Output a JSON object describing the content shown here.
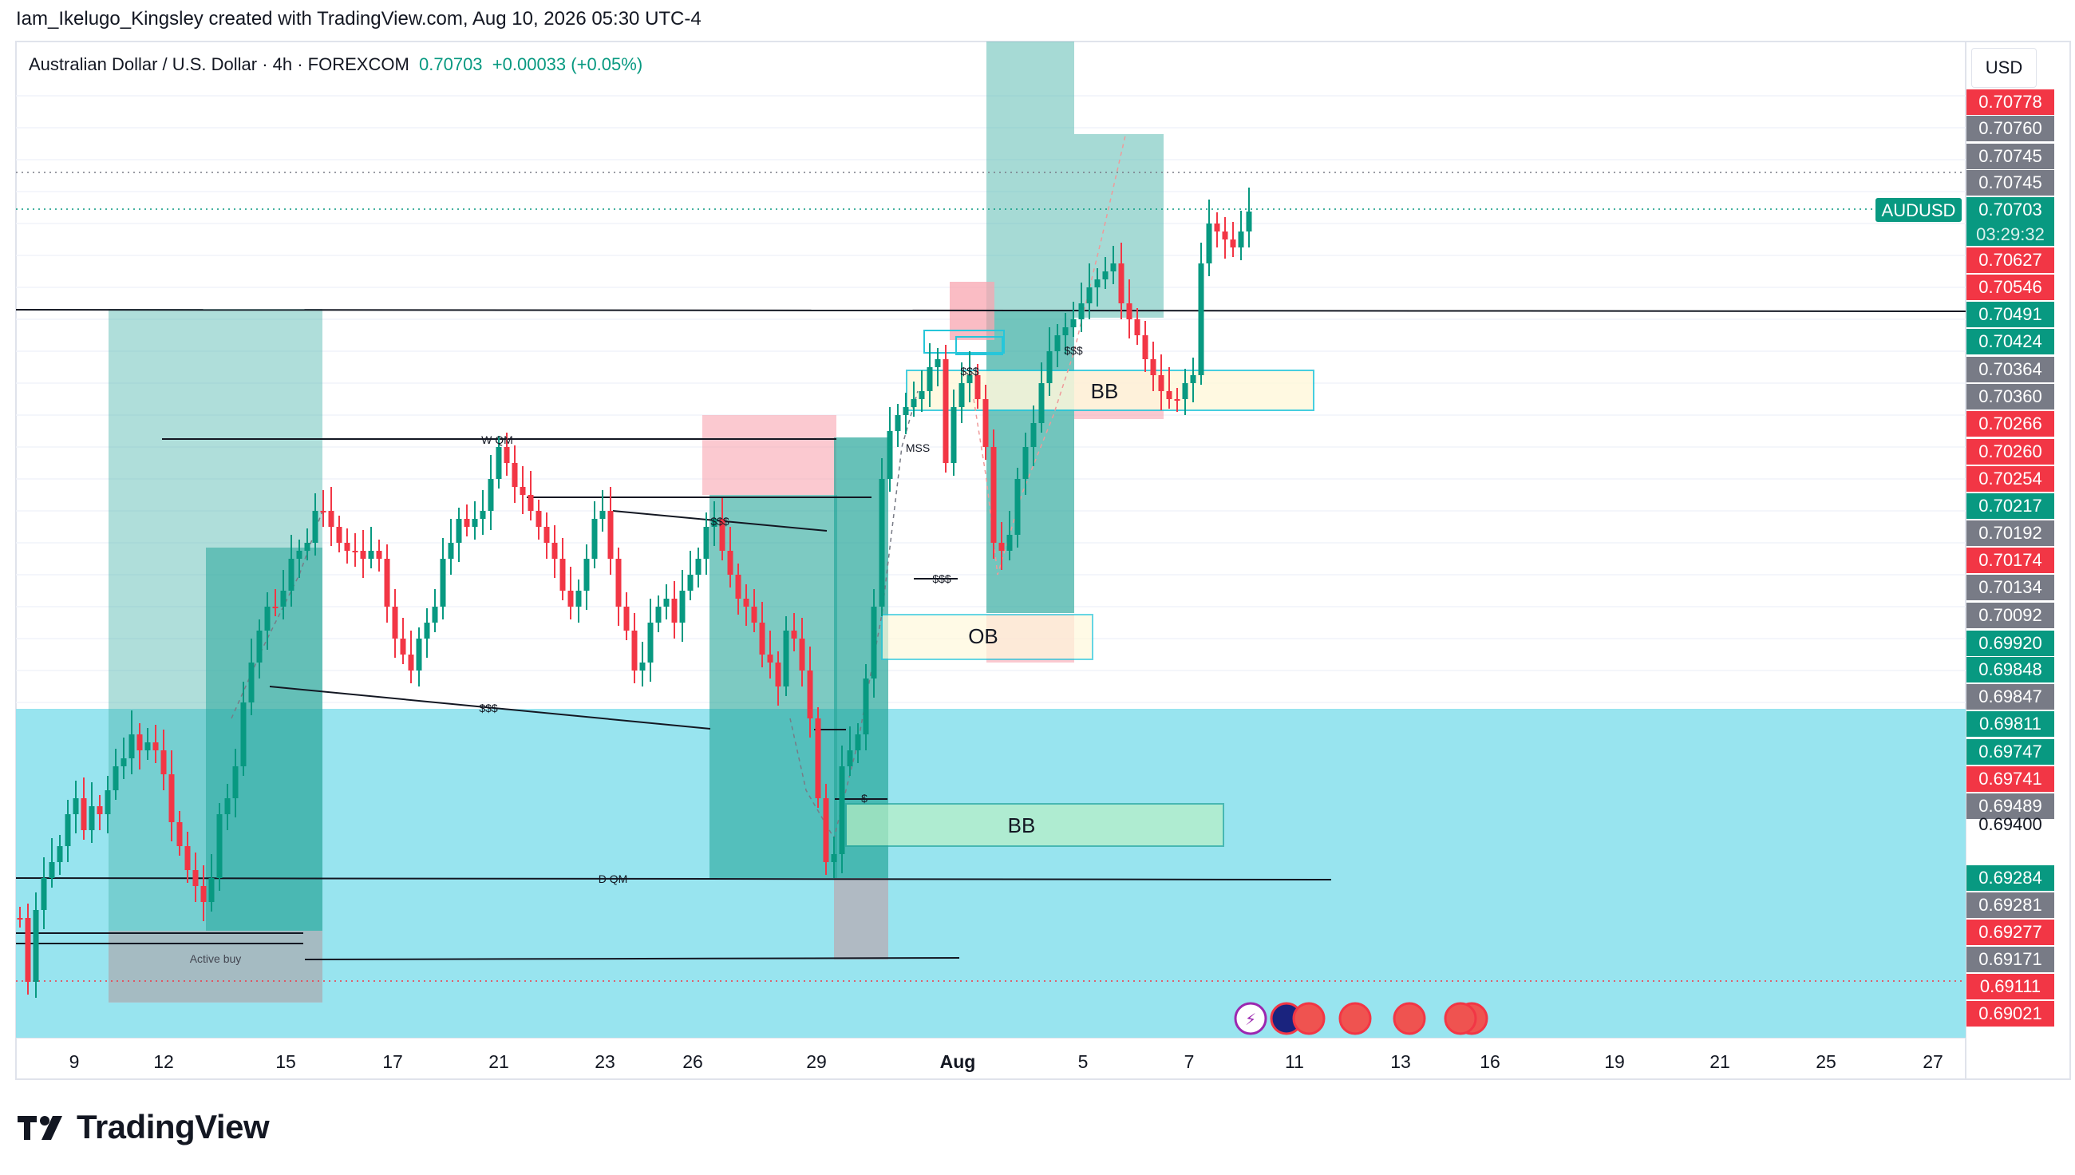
{
  "header": {
    "attribution": "Iam_Ikelugo_Kingsley created with TradingView.com, Aug 10, 2026 05:30 UTC-4"
  },
  "legend": {
    "name": "Australian Dollar / U.S. Dollar · 4h · FOREXCOM",
    "price": "0.70703",
    "change": "+0.00033 (+0.05%)"
  },
  "currency": "USD",
  "brand": "TradingView",
  "colors": {
    "up": "#089981",
    "down": "#f23645",
    "gray": "#787b86",
    "demand_zone": "#8fe2ee",
    "teal_box": "#4db6ac"
  },
  "chart_data": {
    "type": "candlestick",
    "symbol": "AUDUSD",
    "timeframe": "4h",
    "ylim": [
      0.6892,
      0.7092
    ],
    "x_ticks": [
      "9",
      "12",
      "15",
      "17",
      "21",
      "23",
      "26",
      "29",
      "Aug",
      "5",
      "7",
      "11",
      "13",
      "16",
      "19",
      "21",
      "25",
      "27"
    ],
    "price_labels": [
      {
        "text": "0.70778",
        "color": "#f23645"
      },
      {
        "text": "0.70760",
        "color": "#787b86"
      },
      {
        "text": "0.70745",
        "color": "#787b86"
      },
      {
        "text": "0.70745",
        "color": "#787b86"
      },
      {
        "text": "0.70703",
        "color": "#089981"
      },
      {
        "text": "0.70627",
        "color": "#f23645"
      },
      {
        "text": "0.70546",
        "color": "#f23645"
      },
      {
        "text": "0.70491",
        "color": "#089981"
      },
      {
        "text": "0.70424",
        "color": "#089981"
      },
      {
        "text": "0.70364",
        "color": "#787b86"
      },
      {
        "text": "0.70360",
        "color": "#787b86"
      },
      {
        "text": "0.70266",
        "color": "#f23645"
      },
      {
        "text": "0.70260",
        "color": "#f23645"
      },
      {
        "text": "0.70254",
        "color": "#f23645"
      },
      {
        "text": "0.70217",
        "color": "#089981"
      },
      {
        "text": "0.70192",
        "color": "#787b86"
      },
      {
        "text": "0.70174",
        "color": "#f23645"
      },
      {
        "text": "0.70134",
        "color": "#787b86"
      },
      {
        "text": "0.70092",
        "color": "#787b86"
      },
      {
        "text": "0.69920",
        "color": "#089981"
      },
      {
        "text": "0.69848",
        "color": "#089981"
      },
      {
        "text": "0.69847",
        "color": "#787b86"
      },
      {
        "text": "0.69811",
        "color": "#089981"
      },
      {
        "text": "0.69747",
        "color": "#089981"
      },
      {
        "text": "0.69741",
        "color": "#f23645"
      },
      {
        "text": "0.69489",
        "color": "#787b86"
      },
      {
        "text": "0.69400",
        "color": "none"
      },
      {
        "text": "0.69284",
        "color": "#089981"
      },
      {
        "text": "0.69281",
        "color": "#787b86"
      },
      {
        "text": "0.69277",
        "color": "#f23645"
      },
      {
        "text": "0.69171",
        "color": "#787b86"
      },
      {
        "text": "0.69111",
        "color": "#f23645"
      },
      {
        "text": "0.69021",
        "color": "#f23645"
      }
    ],
    "symbol_tag": "AUDUSD",
    "countdown": "03:29:32",
    "annotations": [
      "BB",
      "OB",
      "BB",
      "D QM",
      "Active buy",
      "$$$",
      "$$$",
      "$$$",
      "$$$",
      "$$$",
      "$",
      "MSS",
      "W QM"
    ]
  }
}
